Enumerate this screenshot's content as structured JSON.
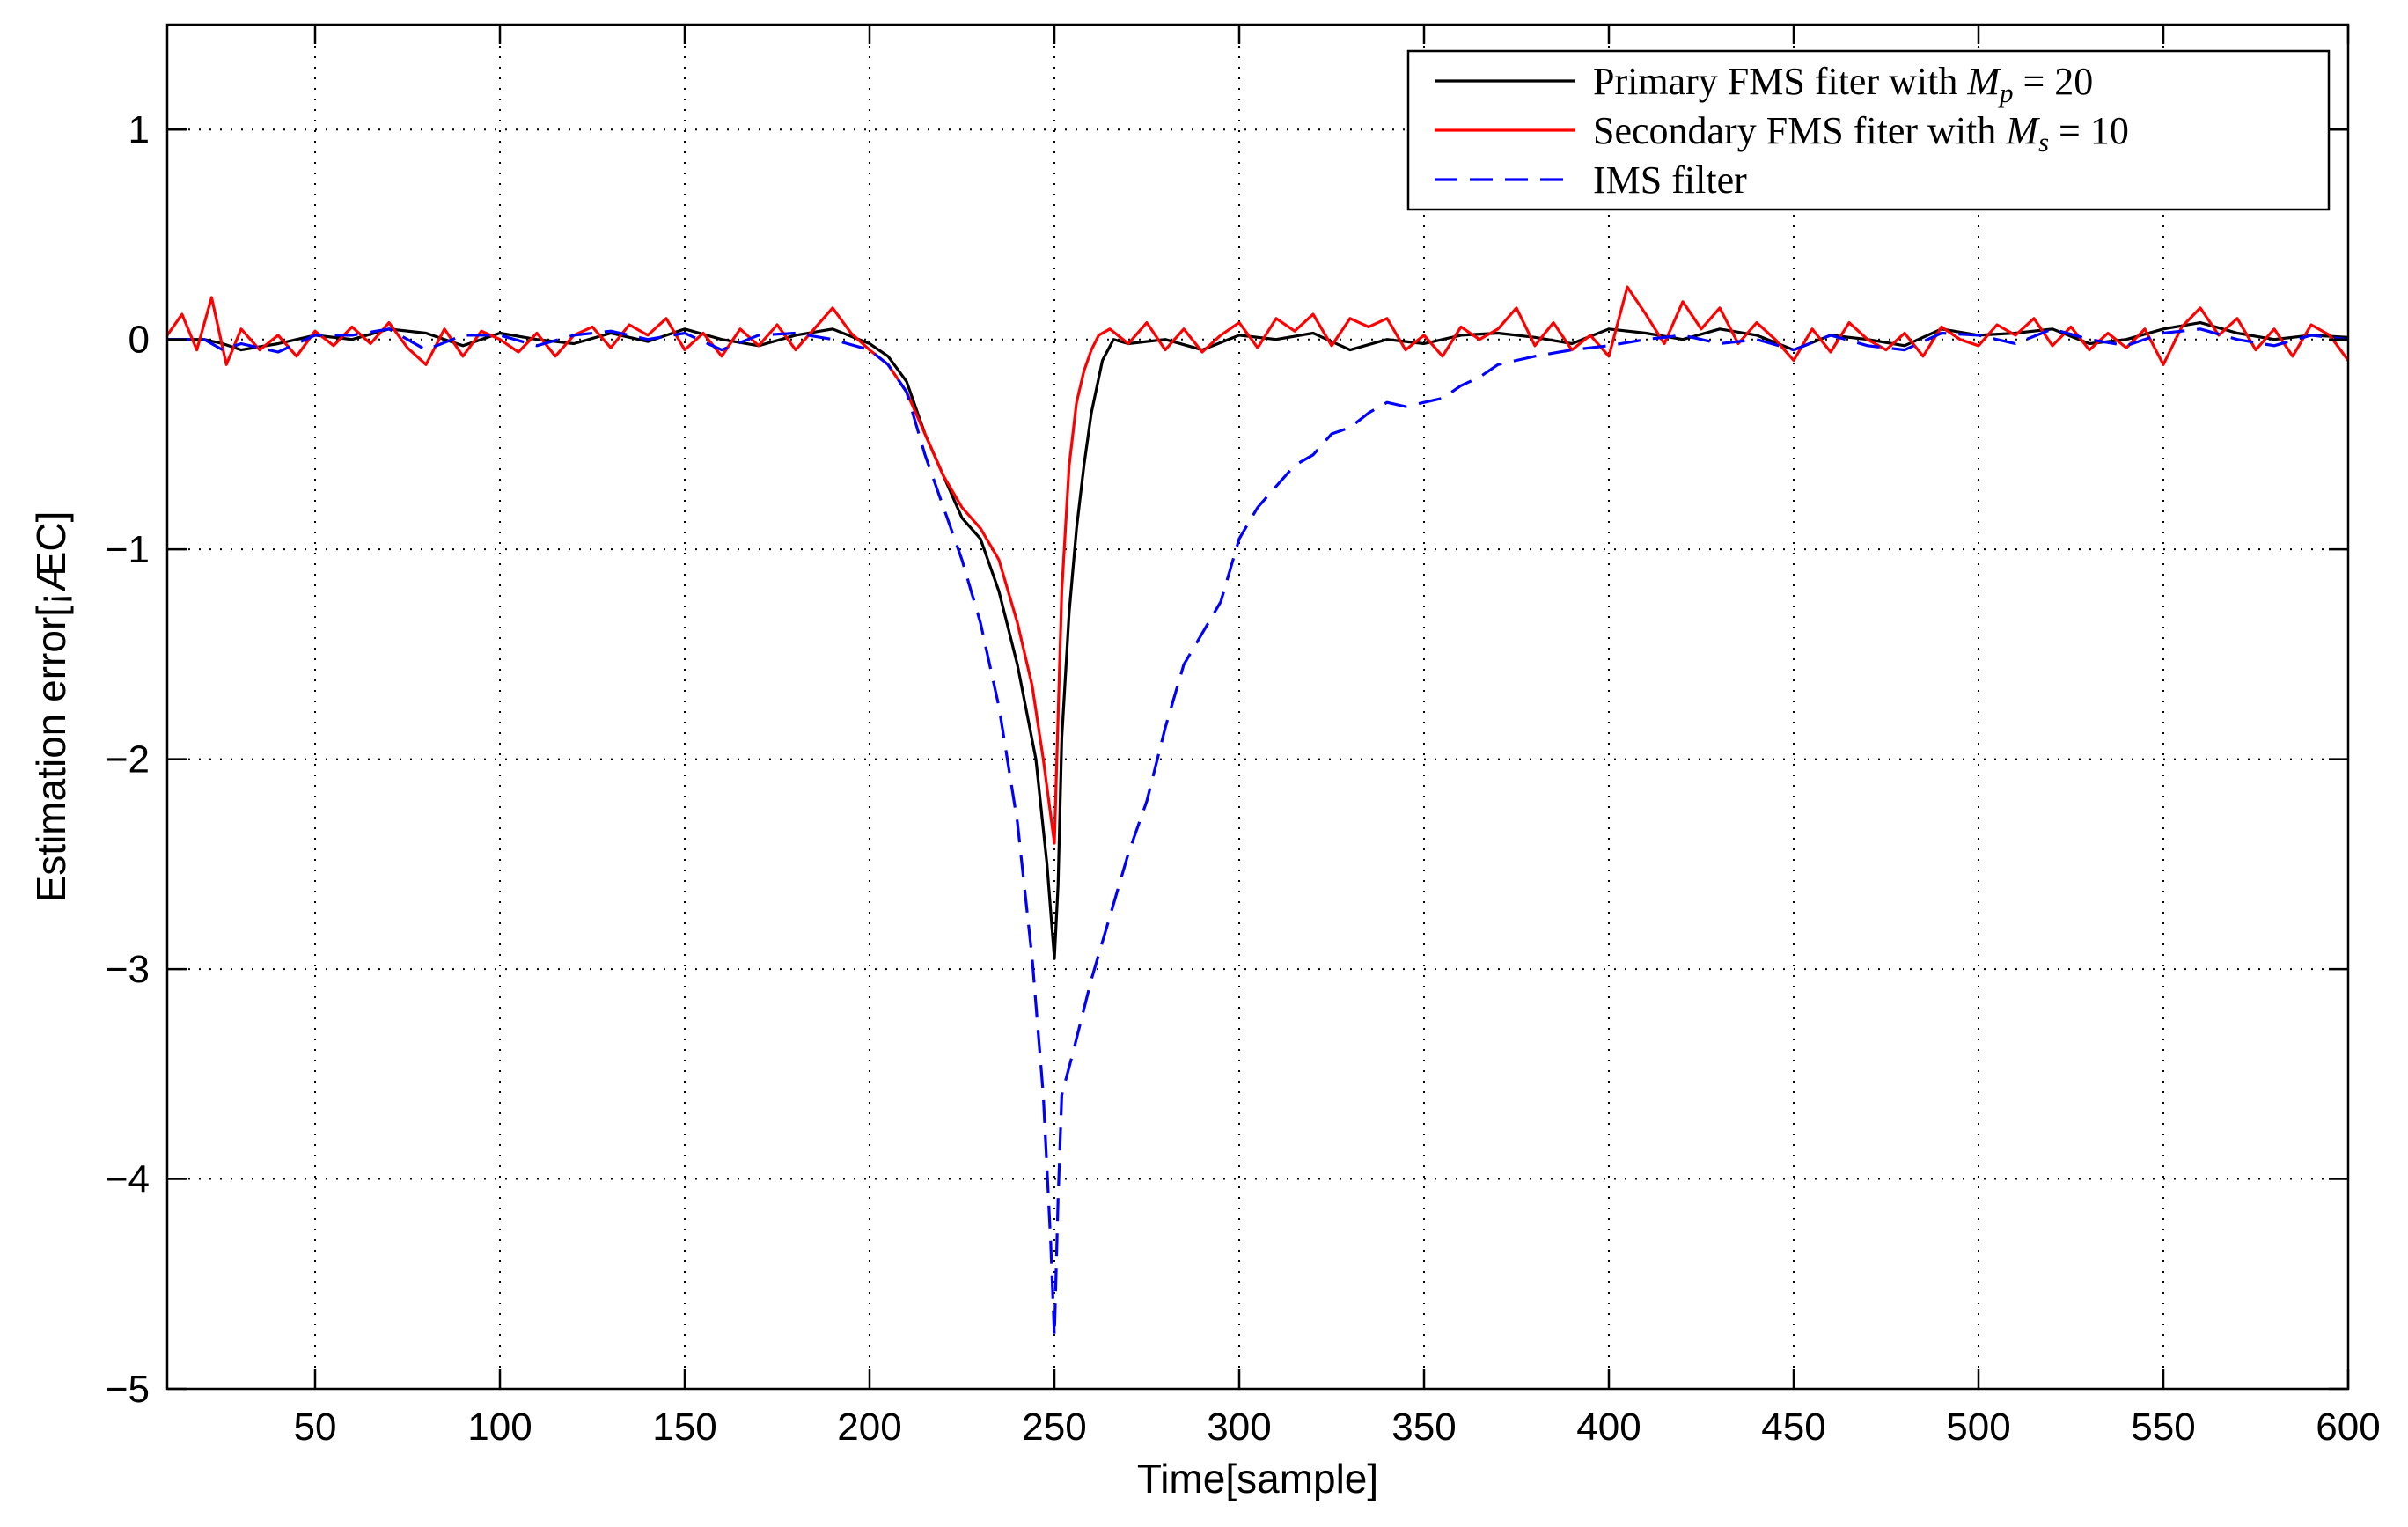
{
  "chart_data": {
    "type": "line",
    "xlabel": "Time[sample]",
    "ylabel": "Estimation error[¡ÆC]",
    "xlim": [
      10,
      600
    ],
    "ylim": [
      -5,
      1.5
    ],
    "xticks": [
      50,
      100,
      150,
      200,
      250,
      300,
      350,
      400,
      450,
      500,
      550,
      600
    ],
    "yticks": [
      -5,
      -4,
      -3,
      -2,
      -1,
      0,
      1
    ],
    "ytick_labels": [
      "−5",
      "−4",
      "−3",
      "−2",
      "−1",
      "0",
      "1"
    ],
    "grid": true,
    "legend_position": "top-right",
    "series": [
      {
        "name": "Primary FMS fiter with M_p = 20",
        "color": "#000000",
        "dash": "solid",
        "points": [
          [
            10,
            0
          ],
          [
            20,
            0
          ],
          [
            25,
            -0.02
          ],
          [
            30,
            -0.05
          ],
          [
            40,
            -0.02
          ],
          [
            50,
            0.02
          ],
          [
            60,
            0.0
          ],
          [
            70,
            0.05
          ],
          [
            80,
            0.03
          ],
          [
            90,
            -0.03
          ],
          [
            100,
            0.03
          ],
          [
            110,
            0.0
          ],
          [
            120,
            -0.02
          ],
          [
            130,
            0.03
          ],
          [
            140,
            -0.01
          ],
          [
            150,
            0.05
          ],
          [
            160,
            0.0
          ],
          [
            170,
            -0.03
          ],
          [
            180,
            0.02
          ],
          [
            190,
            0.05
          ],
          [
            200,
            -0.02
          ],
          [
            205,
            -0.08
          ],
          [
            210,
            -0.2
          ],
          [
            215,
            -0.45
          ],
          [
            220,
            -0.65
          ],
          [
            225,
            -0.85
          ],
          [
            230,
            -0.95
          ],
          [
            235,
            -1.2
          ],
          [
            240,
            -1.55
          ],
          [
            245,
            -2.0
          ],
          [
            248,
            -2.5
          ],
          [
            250,
            -2.95
          ],
          [
            251,
            -2.6
          ],
          [
            252,
            -1.9
          ],
          [
            254,
            -1.3
          ],
          [
            256,
            -0.9
          ],
          [
            258,
            -0.6
          ],
          [
            260,
            -0.35
          ],
          [
            263,
            -0.1
          ],
          [
            266,
            0.0
          ],
          [
            270,
            -0.02
          ],
          [
            280,
            0.0
          ],
          [
            290,
            -0.05
          ],
          [
            300,
            0.02
          ],
          [
            310,
            0.0
          ],
          [
            320,
            0.03
          ],
          [
            330,
            -0.05
          ],
          [
            340,
            0.0
          ],
          [
            350,
            -0.02
          ],
          [
            360,
            0.02
          ],
          [
            370,
            0.03
          ],
          [
            380,
            0.01
          ],
          [
            390,
            -0.02
          ],
          [
            400,
            0.05
          ],
          [
            410,
            0.03
          ],
          [
            420,
            0.0
          ],
          [
            430,
            0.05
          ],
          [
            440,
            0.02
          ],
          [
            450,
            -0.05
          ],
          [
            460,
            0.02
          ],
          [
            470,
            0.0
          ],
          [
            480,
            -0.03
          ],
          [
            490,
            0.05
          ],
          [
            500,
            0.02
          ],
          [
            510,
            0.03
          ],
          [
            520,
            0.05
          ],
          [
            530,
            -0.02
          ],
          [
            540,
            0.0
          ],
          [
            550,
            0.05
          ],
          [
            560,
            0.08
          ],
          [
            570,
            0.03
          ],
          [
            580,
            0.0
          ],
          [
            590,
            0.02
          ],
          [
            600,
            0.01
          ]
        ]
      },
      {
        "name": "Secondary FMS fiter with M_s = 10",
        "color": "#ff0000",
        "dash": "solid",
        "points": [
          [
            10,
            0.02
          ],
          [
            14,
            0.12
          ],
          [
            18,
            -0.05
          ],
          [
            22,
            0.2
          ],
          [
            26,
            -0.12
          ],
          [
            30,
            0.05
          ],
          [
            35,
            -0.05
          ],
          [
            40,
            0.02
          ],
          [
            45,
            -0.08
          ],
          [
            50,
            0.04
          ],
          [
            55,
            -0.03
          ],
          [
            60,
            0.06
          ],
          [
            65,
            -0.02
          ],
          [
            70,
            0.08
          ],
          [
            75,
            -0.04
          ],
          [
            80,
            -0.12
          ],
          [
            85,
            0.05
          ],
          [
            90,
            -0.08
          ],
          [
            95,
            0.04
          ],
          [
            100,
            0.0
          ],
          [
            105,
            -0.06
          ],
          [
            110,
            0.03
          ],
          [
            115,
            -0.08
          ],
          [
            120,
            0.02
          ],
          [
            125,
            0.06
          ],
          [
            130,
            -0.04
          ],
          [
            135,
            0.07
          ],
          [
            140,
            0.02
          ],
          [
            145,
            0.1
          ],
          [
            150,
            -0.05
          ],
          [
            155,
            0.03
          ],
          [
            160,
            -0.08
          ],
          [
            165,
            0.05
          ],
          [
            170,
            -0.03
          ],
          [
            175,
            0.07
          ],
          [
            180,
            -0.05
          ],
          [
            185,
            0.05
          ],
          [
            190,
            0.15
          ],
          [
            195,
            0.03
          ],
          [
            200,
            -0.05
          ],
          [
            205,
            -0.12
          ],
          [
            210,
            -0.25
          ],
          [
            215,
            -0.45
          ],
          [
            220,
            -0.65
          ],
          [
            225,
            -0.8
          ],
          [
            230,
            -0.9
          ],
          [
            235,
            -1.05
          ],
          [
            240,
            -1.35
          ],
          [
            244,
            -1.65
          ],
          [
            247,
            -2.0
          ],
          [
            250,
            -2.4
          ],
          [
            251,
            -1.8
          ],
          [
            252,
            -1.2
          ],
          [
            254,
            -0.6
          ],
          [
            256,
            -0.3
          ],
          [
            258,
            -0.15
          ],
          [
            260,
            -0.05
          ],
          [
            262,
            0.02
          ],
          [
            265,
            0.05
          ],
          [
            270,
            -0.02
          ],
          [
            275,
            0.08
          ],
          [
            280,
            -0.05
          ],
          [
            285,
            0.05
          ],
          [
            290,
            -0.06
          ],
          [
            295,
            0.02
          ],
          [
            300,
            0.08
          ],
          [
            305,
            -0.04
          ],
          [
            310,
            0.1
          ],
          [
            315,
            0.04
          ],
          [
            320,
            0.12
          ],
          [
            325,
            -0.03
          ],
          [
            330,
            0.1
          ],
          [
            335,
            0.06
          ],
          [
            340,
            0.1
          ],
          [
            345,
            -0.05
          ],
          [
            350,
            0.02
          ],
          [
            355,
            -0.08
          ],
          [
            360,
            0.06
          ],
          [
            365,
            0.0
          ],
          [
            370,
            0.05
          ],
          [
            375,
            0.15
          ],
          [
            380,
            -0.03
          ],
          [
            385,
            0.08
          ],
          [
            390,
            -0.05
          ],
          [
            395,
            0.02
          ],
          [
            400,
            -0.08
          ],
          [
            405,
            0.25
          ],
          [
            410,
            0.12
          ],
          [
            415,
            -0.02
          ],
          [
            420,
            0.18
          ],
          [
            425,
            0.05
          ],
          [
            430,
            0.15
          ],
          [
            435,
            -0.02
          ],
          [
            440,
            0.08
          ],
          [
            445,
            0.0
          ],
          [
            450,
            -0.1
          ],
          [
            455,
            0.05
          ],
          [
            460,
            -0.06
          ],
          [
            465,
            0.08
          ],
          [
            470,
            0.0
          ],
          [
            475,
            -0.05
          ],
          [
            480,
            0.03
          ],
          [
            485,
            -0.08
          ],
          [
            490,
            0.06
          ],
          [
            495,
            0.0
          ],
          [
            500,
            -0.03
          ],
          [
            505,
            0.07
          ],
          [
            510,
            0.02
          ],
          [
            515,
            0.1
          ],
          [
            520,
            -0.03
          ],
          [
            525,
            0.06
          ],
          [
            530,
            -0.05
          ],
          [
            535,
            0.03
          ],
          [
            540,
            -0.04
          ],
          [
            545,
            0.05
          ],
          [
            550,
            -0.12
          ],
          [
            555,
            0.06
          ],
          [
            560,
            0.15
          ],
          [
            565,
            0.02
          ],
          [
            570,
            0.1
          ],
          [
            575,
            -0.05
          ],
          [
            580,
            0.05
          ],
          [
            585,
            -0.08
          ],
          [
            590,
            0.07
          ],
          [
            595,
            0.02
          ],
          [
            600,
            -0.1
          ]
        ]
      },
      {
        "name": "IMS filter",
        "color": "#0000ff",
        "dash": "dashed",
        "points": [
          [
            10,
            0
          ],
          [
            20,
            0
          ],
          [
            25,
            -0.05
          ],
          [
            30,
            -0.02
          ],
          [
            40,
            -0.06
          ],
          [
            50,
            0.02
          ],
          [
            60,
            0.02
          ],
          [
            70,
            0.05
          ],
          [
            80,
            -0.05
          ],
          [
            90,
            0.02
          ],
          [
            100,
            0.02
          ],
          [
            110,
            -0.03
          ],
          [
            120,
            0.02
          ],
          [
            130,
            0.04
          ],
          [
            140,
            0.0
          ],
          [
            150,
            0.03
          ],
          [
            160,
            -0.05
          ],
          [
            170,
            0.02
          ],
          [
            180,
            0.03
          ],
          [
            190,
            0.0
          ],
          [
            200,
            -0.05
          ],
          [
            205,
            -0.12
          ],
          [
            210,
            -0.25
          ],
          [
            215,
            -0.55
          ],
          [
            220,
            -0.8
          ],
          [
            225,
            -1.05
          ],
          [
            230,
            -1.35
          ],
          [
            235,
            -1.75
          ],
          [
            240,
            -2.3
          ],
          [
            244,
            -2.95
          ],
          [
            247,
            -3.6
          ],
          [
            249,
            -4.3
          ],
          [
            250,
            -4.75
          ],
          [
            251,
            -4.1
          ],
          [
            252,
            -3.6
          ],
          [
            255,
            -3.4
          ],
          [
            260,
            -3.05
          ],
          [
            265,
            -2.75
          ],
          [
            270,
            -2.45
          ],
          [
            275,
            -2.2
          ],
          [
            280,
            -1.85
          ],
          [
            285,
            -1.55
          ],
          [
            290,
            -1.4
          ],
          [
            295,
            -1.25
          ],
          [
            300,
            -0.95
          ],
          [
            305,
            -0.8
          ],
          [
            310,
            -0.7
          ],
          [
            315,
            -0.6
          ],
          [
            320,
            -0.55
          ],
          [
            325,
            -0.45
          ],
          [
            330,
            -0.42
          ],
          [
            335,
            -0.35
          ],
          [
            340,
            -0.3
          ],
          [
            345,
            -0.32
          ],
          [
            350,
            -0.3
          ],
          [
            355,
            -0.28
          ],
          [
            360,
            -0.22
          ],
          [
            365,
            -0.18
          ],
          [
            370,
            -0.12
          ],
          [
            375,
            -0.1
          ],
          [
            380,
            -0.08
          ],
          [
            390,
            -0.05
          ],
          [
            400,
            -0.03
          ],
          [
            410,
            0.0
          ],
          [
            420,
            0.02
          ],
          [
            430,
            -0.02
          ],
          [
            440,
            0.0
          ],
          [
            450,
            -0.05
          ],
          [
            460,
            0.02
          ],
          [
            470,
            -0.03
          ],
          [
            480,
            -0.05
          ],
          [
            490,
            0.03
          ],
          [
            500,
            0.02
          ],
          [
            510,
            -0.02
          ],
          [
            520,
            0.05
          ],
          [
            530,
            0.0
          ],
          [
            540,
            -0.03
          ],
          [
            550,
            0.03
          ],
          [
            560,
            0.05
          ],
          [
            570,
            0.0
          ],
          [
            580,
            -0.03
          ],
          [
            590,
            0.02
          ],
          [
            600,
            0.0
          ]
        ]
      }
    ],
    "legend": [
      {
        "series_index": 0,
        "text": "Primary FMS fiter with",
        "math": "M",
        "sub": "p",
        "rest": " = 20"
      },
      {
        "series_index": 1,
        "text": "Secondary FMS fiter with",
        "math": "M",
        "sub": "s",
        "rest": " = 10"
      },
      {
        "series_index": 2,
        "text": "IMS filter",
        "math": "",
        "sub": "",
        "rest": ""
      }
    ]
  }
}
